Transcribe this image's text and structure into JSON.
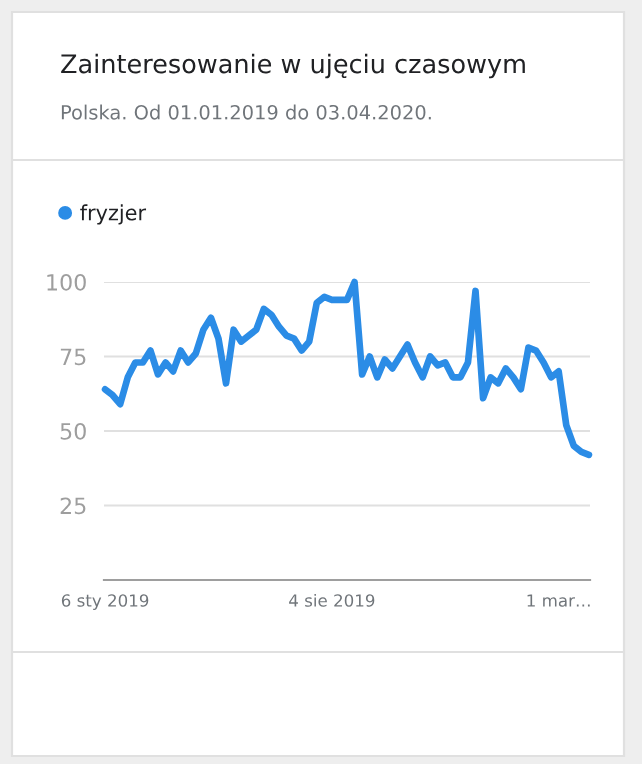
{
  "chart_data": {
    "type": "line",
    "title": "Zainteresowanie w ujęciu czasowym",
    "subtitle": "Polska. Od 01.01.2019 do 03.04.2020.",
    "x": [
      "2019-01-06",
      "2019-01-13",
      "2019-01-20",
      "2019-01-27",
      "2019-02-03",
      "2019-02-10",
      "2019-02-17",
      "2019-02-24",
      "2019-03-03",
      "2019-03-10",
      "2019-03-17",
      "2019-03-24",
      "2019-03-31",
      "2019-04-07",
      "2019-04-14",
      "2019-04-21",
      "2019-04-28",
      "2019-05-05",
      "2019-05-12",
      "2019-05-19",
      "2019-05-26",
      "2019-06-02",
      "2019-06-09",
      "2019-06-16",
      "2019-06-23",
      "2019-06-30",
      "2019-07-07",
      "2019-07-14",
      "2019-07-21",
      "2019-07-28",
      "2019-08-04",
      "2019-08-11",
      "2019-08-18",
      "2019-08-25",
      "2019-09-01",
      "2019-09-08",
      "2019-09-15",
      "2019-09-22",
      "2019-09-29",
      "2019-10-06",
      "2019-10-13",
      "2019-10-20",
      "2019-10-27",
      "2019-11-03",
      "2019-11-10",
      "2019-11-17",
      "2019-11-24",
      "2019-12-01",
      "2019-12-08",
      "2019-12-15",
      "2019-12-22",
      "2019-12-29",
      "2020-01-05",
      "2020-01-12",
      "2020-01-19",
      "2020-01-26",
      "2020-02-02",
      "2020-02-09",
      "2020-02-16",
      "2020-02-23",
      "2020-03-01",
      "2020-03-08",
      "2020-03-15",
      "2020-03-22",
      "2020-03-29"
    ],
    "series": [
      {
        "name": "fryzjer",
        "color": "#2b8ce6",
        "values": [
          64,
          62,
          59,
          68,
          73,
          73,
          77,
          69,
          73,
          70,
          77,
          73,
          76,
          84,
          88,
          81,
          66,
          84,
          80,
          82,
          84,
          91,
          89,
          85,
          82,
          81,
          77,
          80,
          93,
          95,
          94,
          94,
          94,
          100,
          69,
          75,
          68,
          74,
          71,
          75,
          79,
          73,
          68,
          75,
          72,
          73,
          68,
          68,
          73,
          97,
          61,
          68,
          66,
          71,
          68,
          64,
          78,
          77,
          73,
          68,
          70,
          52,
          45,
          43,
          42
        ]
      }
    ],
    "xlim": [
      "2019-01-05",
      "2020-03-30"
    ],
    "xticks": [
      {
        "value": "2019-01-06",
        "label": "6 sty 2019"
      },
      {
        "value": "2019-08-04",
        "label": "4 sie 2019"
      },
      {
        "value": "2020-03-01",
        "label": "1 mar…"
      }
    ],
    "ylim": [
      0,
      100
    ],
    "yticks": [
      25,
      50,
      75,
      100
    ],
    "grid": "y",
    "legend": "top left",
    "marker": "none",
    "line_style": "solid"
  }
}
